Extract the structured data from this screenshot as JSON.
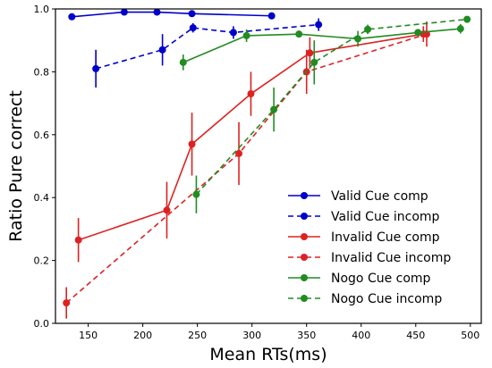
{
  "chart_data": {
    "type": "line",
    "xlabel": "Mean RTs(ms)",
    "ylabel": "Ratio Pure correct",
    "xlim": [
      120,
      510
    ],
    "ylim": [
      0.0,
      1.0
    ],
    "xticks": [
      150,
      200,
      250,
      300,
      350,
      400,
      450,
      500
    ],
    "yticks": [
      0.0,
      0.2,
      0.4,
      0.6,
      0.8,
      1.0
    ],
    "legend_position": "lower-right",
    "grid": false,
    "series": [
      {
        "name": "Valid Cue comp",
        "color": "#0000cc",
        "style": "solid",
        "points": [
          {
            "x": 135,
            "y": 0.975,
            "err": 0
          },
          {
            "x": 183,
            "y": 0.99,
            "err": 0
          },
          {
            "x": 213,
            "y": 0.99,
            "err": 0
          },
          {
            "x": 245,
            "y": 0.985,
            "err": 0
          },
          {
            "x": 318,
            "y": 0.978,
            "err": 0
          }
        ]
      },
      {
        "name": "Valid Cue incomp",
        "color": "#0000cc",
        "style": "dashed",
        "points": [
          {
            "x": 157,
            "y": 0.81,
            "err": 0.06
          },
          {
            "x": 218,
            "y": 0.87,
            "err": 0.05
          },
          {
            "x": 246,
            "y": 0.94,
            "err": 0.015
          },
          {
            "x": 283,
            "y": 0.925,
            "err": 0.02
          },
          {
            "x": 361,
            "y": 0.95,
            "err": 0.02
          }
        ]
      },
      {
        "name": "Invalid Cue comp",
        "color": "#dd2222",
        "style": "solid",
        "points": [
          {
            "x": 141,
            "y": 0.265,
            "err": 0.07
          },
          {
            "x": 222,
            "y": 0.36,
            "err": 0.09
          },
          {
            "x": 245,
            "y": 0.57,
            "err": 0.1
          },
          {
            "x": 299,
            "y": 0.73,
            "err": 0.07
          },
          {
            "x": 353,
            "y": 0.86,
            "err": 0.05
          },
          {
            "x": 457,
            "y": 0.92,
            "err": 0.025
          }
        ]
      },
      {
        "name": "Invalid Cue incomp",
        "color": "#dd2222",
        "style": "dashed",
        "points": [
          {
            "x": 130,
            "y": 0.065,
            "err": 0.05
          },
          {
            "x": 288,
            "y": 0.54,
            "err": 0.1
          },
          {
            "x": 350,
            "y": 0.8,
            "err": 0.07
          },
          {
            "x": 460,
            "y": 0.92,
            "err": 0.04
          }
        ]
      },
      {
        "name": "Nogo Cue comp",
        "color": "#228b22",
        "style": "solid",
        "points": [
          {
            "x": 237,
            "y": 0.83,
            "err": 0.025
          },
          {
            "x": 295,
            "y": 0.915,
            "err": 0.02
          },
          {
            "x": 343,
            "y": 0.92,
            "err": 0.01
          },
          {
            "x": 397,
            "y": 0.905,
            "err": 0.025
          },
          {
            "x": 452,
            "y": 0.925,
            "err": 0.01
          },
          {
            "x": 491,
            "y": 0.937,
            "err": 0.015
          }
        ]
      },
      {
        "name": "Nogo Cue incomp",
        "color": "#228b22",
        "style": "dashed",
        "points": [
          {
            "x": 249,
            "y": 0.41,
            "err": 0.06
          },
          {
            "x": 320,
            "y": 0.68,
            "err": 0.07
          },
          {
            "x": 357,
            "y": 0.83,
            "err": 0.07
          },
          {
            "x": 406,
            "y": 0.935,
            "err": 0.015
          },
          {
            "x": 497,
            "y": 0.967,
            "err": 0.008
          }
        ]
      }
    ]
  }
}
